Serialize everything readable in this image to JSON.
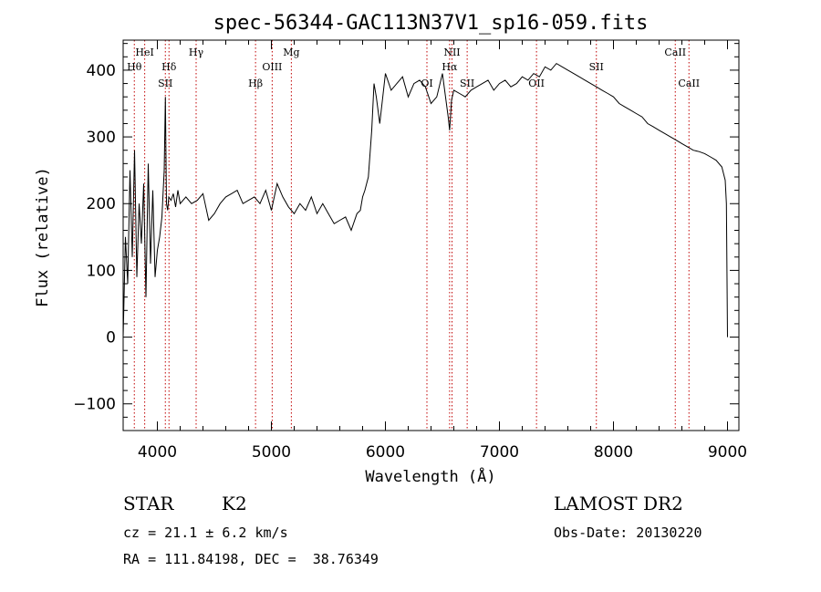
{
  "chart_data": {
    "type": "line",
    "title": "spec-56344-GAC113N37V1_sp16-059.fits",
    "xlabel": "Wavelength (Å)",
    "ylabel": "Flux (relative)",
    "xlim": [
      3700,
      9100
    ],
    "ylim": [
      -140,
      445
    ],
    "x_ticks": [
      4000,
      5000,
      6000,
      7000,
      8000,
      9000
    ],
    "y_ticks": [
      -100,
      0,
      100,
      200,
      300,
      400
    ],
    "grid": false,
    "line_color": "#000000",
    "marker_color": "#c00000",
    "series": [
      {
        "x": [
          3700,
          3720,
          3740,
          3760,
          3780,
          3800,
          3820,
          3840,
          3860,
          3880,
          3900,
          3920,
          3940,
          3960,
          3980,
          4000,
          4020,
          4040,
          4060,
          4070,
          4080,
          4090,
          4100,
          4120,
          4140,
          4160,
          4180,
          4200,
          4250,
          4300,
          4350,
          4400,
          4450,
          4500,
          4550,
          4600,
          4650,
          4700,
          4750,
          4800,
          4850,
          4900,
          4950,
          5000,
          5050,
          5100,
          5150,
          5200,
          5250,
          5300,
          5350,
          5400,
          5450,
          5500,
          5550,
          5600,
          5650,
          5700,
          5750,
          5780,
          5800,
          5820,
          5850,
          5880,
          5900,
          5920,
          5950,
          6000,
          6050,
          6100,
          6150,
          6200,
          6250,
          6300,
          6350,
          6400,
          6450,
          6500,
          6550,
          6563,
          6580,
          6600,
          6650,
          6700,
          6750,
          6800,
          6850,
          6900,
          6950,
          7000,
          7050,
          7100,
          7150,
          7200,
          7250,
          7300,
          7350,
          7400,
          7450,
          7500,
          7550,
          7600,
          7650,
          7700,
          7750,
          7800,
          7850,
          7900,
          7950,
          8000,
          8050,
          8100,
          8150,
          8200,
          8250,
          8300,
          8350,
          8400,
          8450,
          8500,
          8550,
          8600,
          8650,
          8700,
          8750,
          8800,
          8850,
          8900,
          8950,
          8980,
          8990,
          9000
        ],
        "y": [
          0,
          150,
          80,
          250,
          120,
          280,
          90,
          200,
          140,
          230,
          60,
          260,
          110,
          220,
          90,
          130,
          150,
          180,
          250,
          360,
          200,
          190,
          210,
          205,
          215,
          195,
          220,
          200,
          210,
          200,
          205,
          215,
          175,
          185,
          200,
          210,
          215,
          220,
          200,
          205,
          210,
          200,
          220,
          190,
          230,
          210,
          195,
          185,
          200,
          190,
          210,
          185,
          200,
          185,
          170,
          175,
          180,
          160,
          185,
          190,
          210,
          220,
          240,
          310,
          380,
          360,
          320,
          395,
          370,
          380,
          390,
          360,
          380,
          385,
          375,
          350,
          360,
          395,
          330,
          310,
          355,
          370,
          365,
          360,
          370,
          375,
          380,
          385,
          370,
          380,
          385,
          375,
          380,
          390,
          385,
          395,
          390,
          405,
          400,
          410,
          405,
          400,
          395,
          390,
          385,
          380,
          375,
          370,
          365,
          360,
          350,
          345,
          340,
          335,
          330,
          320,
          315,
          310,
          305,
          300,
          295,
          290,
          285,
          280,
          278,
          275,
          270,
          265,
          255,
          235,
          200,
          0
        ]
      }
    ],
    "line_markers": [
      {
        "label": "HeI",
        "x": 3889,
        "row": 1
      },
      {
        "label": "Hθ",
        "x": 3798,
        "row": 2
      },
      {
        "label": "Hδ",
        "x": 4102,
        "row": 2
      },
      {
        "label": "SII",
        "x": 4070,
        "row": 3
      },
      {
        "label": "Hγ",
        "x": 4340,
        "row": 1
      },
      {
        "label": "Hβ",
        "x": 4861,
        "row": 3
      },
      {
        "label": "OIII",
        "x": 5007,
        "row": 2
      },
      {
        "label": "Mg",
        "x": 5175,
        "row": 1
      },
      {
        "label": "NII",
        "x": 6584,
        "row": 1
      },
      {
        "label": "Hα",
        "x": 6563,
        "row": 2
      },
      {
        "label": "OI",
        "x": 6364,
        "row": 3
      },
      {
        "label": "SII",
        "x": 6717,
        "row": 3
      },
      {
        "label": "OII",
        "x": 7325,
        "row": 3
      },
      {
        "label": "SII",
        "x": 7850,
        "row": 2
      },
      {
        "label": "CaII",
        "x": 8542,
        "row": 1
      },
      {
        "label": "CaII",
        "x": 8662,
        "row": 3
      }
    ]
  },
  "info": {
    "object_class": "STAR",
    "subclass": "K2",
    "survey": "LAMOST DR2",
    "cz": "cz = 21.1 ± 6.2 km/s",
    "obs_date": "Obs-Date: 20130220",
    "coords": "RA = 111.84198, DEC =  38.76349"
  }
}
